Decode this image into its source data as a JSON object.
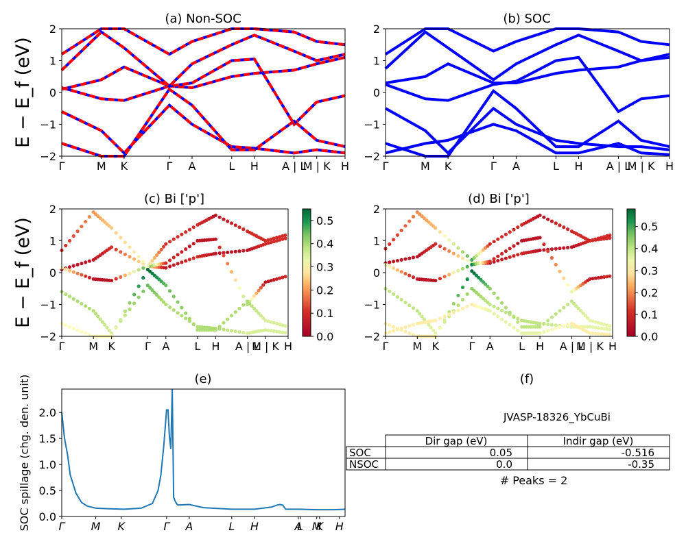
{
  "figure": {
    "band_kpoints": [
      "Γ",
      "M",
      "K",
      "Γ",
      "A",
      "L",
      "H",
      "A | L",
      "M | K",
      "H"
    ],
    "ylabel_band": "E − E_f (eV)",
    "colors": {
      "nonsoc_solid": "#0000ff",
      "nonsoc_dash": "#ff0000",
      "soc": "#0000ff",
      "spillage": "#1f77b4"
    }
  },
  "chart_data": [
    {
      "id": "a",
      "type": "line",
      "title": "(a) Non-SOC",
      "ylabel": "E − E_f (eV)",
      "ylim": [
        -2,
        2
      ],
      "yticks": [
        -2,
        -1,
        0,
        1,
        2
      ],
      "xticks": [
        "Γ",
        "M",
        "K",
        "Γ",
        "A",
        "L",
        "H",
        "A | L",
        "M | K",
        "H"
      ],
      "note": "Non-SOC bands, blue line overlaid with red dashes",
      "series_x": [
        0,
        0.14,
        0.22,
        0.38,
        0.46,
        0.6,
        0.68,
        0.82,
        0.9,
        1.0
      ],
      "series": [
        {
          "values": [
            0.1,
            0.4,
            0.8,
            0.2,
            0.15,
            0.5,
            0.6,
            0.7,
            0.9,
            1.1
          ]
        },
        {
          "values": [
            0.15,
            -0.2,
            -0.25,
            0.2,
            0.3,
            1.0,
            1.05,
            -1.0,
            -0.3,
            -0.1
          ]
        },
        {
          "values": [
            -0.6,
            -1.2,
            -1.9,
            -0.4,
            -1.0,
            -1.7,
            -1.75,
            -1.9,
            -1.8,
            -1.9
          ]
        },
        {
          "values": [
            -1.6,
            -2.0,
            -2.0,
            0.1,
            -0.4,
            -1.8,
            -1.8,
            -0.9,
            -1.5,
            -1.7
          ]
        },
        {
          "values": [
            0.7,
            1.9,
            1.4,
            0.2,
            0.9,
            1.5,
            1.8,
            1.3,
            1.0,
            1.2
          ]
        },
        {
          "values": [
            1.2,
            2.0,
            2.0,
            1.2,
            1.6,
            2.0,
            2.0,
            1.9,
            1.6,
            1.5
          ]
        }
      ]
    },
    {
      "id": "b",
      "type": "line",
      "title": "(b) SOC",
      "ylim": [
        -2,
        2
      ],
      "yticks": [
        -2,
        -1,
        0,
        1,
        2
      ],
      "xticks": [
        "Γ",
        "M",
        "K",
        "Γ",
        "A",
        "L",
        "H",
        "A | L",
        "M | K",
        "H"
      ],
      "series_x": [
        0,
        0.14,
        0.22,
        0.38,
        0.46,
        0.6,
        0.68,
        0.82,
        0.9,
        1.0
      ],
      "series": [
        {
          "values": [
            0.3,
            0.5,
            0.9,
            0.3,
            0.3,
            0.6,
            0.7,
            0.8,
            1.0,
            1.1
          ]
        },
        {
          "values": [
            0.25,
            -0.2,
            -0.25,
            0.25,
            0.35,
            1.0,
            1.1,
            -0.6,
            -0.2,
            -0.1
          ]
        },
        {
          "values": [
            -0.5,
            -1.2,
            -1.9,
            -0.5,
            -1.0,
            -1.5,
            -1.6,
            -1.7,
            -1.7,
            -1.8
          ]
        },
        {
          "values": [
            -1.6,
            -2.0,
            -2.0,
            0.05,
            -0.5,
            -1.7,
            -1.7,
            -0.9,
            -1.5,
            -1.7
          ]
        },
        {
          "values": [
            0.75,
            1.9,
            1.4,
            0.4,
            0.9,
            1.5,
            1.8,
            1.3,
            1.0,
            1.2
          ]
        },
        {
          "values": [
            1.2,
            2.0,
            2.0,
            1.3,
            1.6,
            2.0,
            2.0,
            1.9,
            1.6,
            1.5
          ]
        },
        {
          "values": [
            -1.9,
            -1.6,
            -1.5,
            -1.0,
            -1.2,
            -1.9,
            -1.9,
            -1.6,
            -1.9,
            -1.95
          ]
        }
      ]
    },
    {
      "id": "c",
      "type": "scatter",
      "title": "(c)  Bi ['p']",
      "ylabel": "E − E_f (eV)",
      "ylim": [
        -2,
        2
      ],
      "yticks": [
        -2,
        -1,
        0,
        1,
        2
      ],
      "xticks": [
        "Γ",
        "M",
        "K",
        "Γ",
        "A",
        "L",
        "H",
        "A | L",
        "M | K",
        "H"
      ],
      "colorbar": {
        "min": 0.0,
        "max": 0.55,
        "ticks": [
          "0.0",
          "0.1",
          "0.2",
          "0.3",
          "0.4",
          "0.5"
        ]
      },
      "series_x": [
        0,
        0.14,
        0.22,
        0.38,
        0.46,
        0.6,
        0.68,
        0.82,
        0.9,
        1.0
      ],
      "series": [
        {
          "values": [
            0.1,
            0.4,
            0.8,
            0.2,
            0.15,
            0.5,
            0.6,
            0.7,
            0.9,
            1.1
          ],
          "weight": [
            0.05,
            0.05,
            0.1,
            0.3,
            0.05,
            0.1,
            0.05,
            0.05,
            0.1,
            0.1
          ]
        },
        {
          "values": [
            0.15,
            -0.2,
            -0.25,
            0.2,
            0.3,
            1.0,
            1.05,
            -1.0,
            -0.3,
            -0.1
          ],
          "weight": [
            0.3,
            0.05,
            0.05,
            0.5,
            0.1,
            0.05,
            0.05,
            0.4,
            0.05,
            0.1
          ]
        },
        {
          "values": [
            -0.6,
            -1.2,
            -1.9,
            -0.4,
            -1.0,
            -1.7,
            -1.75,
            -1.9,
            -1.8,
            -1.9
          ],
          "weight": [
            0.4,
            0.4,
            0.35,
            0.45,
            0.4,
            0.4,
            0.4,
            0.35,
            0.35,
            0.35
          ]
        },
        {
          "values": [
            -1.6,
            -2.0,
            -2.0,
            0.1,
            -0.4,
            -1.8,
            -1.8,
            -0.9,
            -1.5,
            -1.7
          ],
          "weight": [
            0.3,
            0.3,
            0.3,
            0.55,
            0.45,
            0.4,
            0.4,
            0.4,
            0.35,
            0.35
          ]
        },
        {
          "values": [
            0.7,
            1.9,
            1.4,
            0.2,
            0.9,
            1.5,
            1.8,
            1.3,
            1.0,
            1.2
          ],
          "weight": [
            0.1,
            0.2,
            0.25,
            0.3,
            0.1,
            0.1,
            0.05,
            0.1,
            0.1,
            0.1
          ]
        }
      ]
    },
    {
      "id": "d",
      "type": "scatter",
      "title": "(d) Bi ['p']",
      "ylim": [
        -2,
        2
      ],
      "yticks": [
        -2,
        -1,
        0,
        1,
        2
      ],
      "xticks": [
        "Γ",
        "M",
        "K",
        "Γ",
        "A",
        "L",
        "H",
        "A | L",
        "M | K",
        "H"
      ],
      "colorbar": {
        "min": 0.0,
        "max": 0.58,
        "ticks": [
          "0.0",
          "0.1",
          "0.2",
          "0.3",
          "0.4",
          "0.5"
        ]
      },
      "series_x": [
        0,
        0.14,
        0.22,
        0.38,
        0.46,
        0.6,
        0.68,
        0.82,
        0.9,
        1.0
      ],
      "series": [
        {
          "values": [
            0.3,
            0.5,
            0.9,
            0.3,
            0.3,
            0.6,
            0.7,
            0.8,
            1.0,
            1.1
          ],
          "weight": [
            0.05,
            0.05,
            0.1,
            0.35,
            0.05,
            0.1,
            0.05,
            0.05,
            0.1,
            0.1
          ]
        },
        {
          "values": [
            0.25,
            -0.2,
            -0.25,
            0.25,
            0.35,
            1.0,
            1.1,
            -0.6,
            -0.2,
            -0.1
          ],
          "weight": [
            0.35,
            0.05,
            0.05,
            0.55,
            0.1,
            0.05,
            0.05,
            0.35,
            0.05,
            0.1
          ]
        },
        {
          "values": [
            -0.5,
            -1.2,
            -1.9,
            -0.5,
            -1.0,
            -1.5,
            -1.6,
            -1.7,
            -1.7,
            -1.8
          ],
          "weight": [
            0.4,
            0.4,
            0.35,
            0.45,
            0.4,
            0.4,
            0.4,
            0.35,
            0.35,
            0.35
          ]
        },
        {
          "values": [
            -1.6,
            -2.0,
            -2.0,
            0.05,
            -0.5,
            -1.7,
            -1.7,
            -0.9,
            -1.5,
            -1.7
          ],
          "weight": [
            0.3,
            0.3,
            0.3,
            0.58,
            0.45,
            0.4,
            0.4,
            0.4,
            0.35,
            0.35
          ]
        },
        {
          "values": [
            0.75,
            1.9,
            1.4,
            0.4,
            0.9,
            1.5,
            1.8,
            1.3,
            1.0,
            1.2
          ],
          "weight": [
            0.1,
            0.2,
            0.25,
            0.5,
            0.1,
            0.1,
            0.05,
            0.1,
            0.1,
            0.1
          ]
        },
        {
          "values": [
            -1.9,
            -1.6,
            -1.5,
            -1.0,
            -1.2,
            -1.9,
            -1.9,
            -1.6,
            -1.9,
            -1.95
          ],
          "weight": [
            0.3,
            0.3,
            0.3,
            0.3,
            0.35,
            0.35,
            0.35,
            0.3,
            0.3,
            0.3
          ]
        }
      ]
    },
    {
      "id": "e",
      "type": "line",
      "title": "(e)",
      "ylabel": "SOC spillage (chg. den. unit)",
      "ylim": [
        0,
        2.45
      ],
      "yticks": [
        0.0,
        0.5,
        1.0,
        1.5,
        2.0
      ],
      "xticks": [
        "Γ",
        "M",
        "K",
        "Γ",
        "A",
        "L",
        "H",
        "A",
        "L",
        "M",
        "K",
        "H"
      ],
      "x": [
        0,
        0.01,
        0.02,
        0.03,
        0.05,
        0.07,
        0.09,
        0.12,
        0.16,
        0.22,
        0.28,
        0.32,
        0.34,
        0.35,
        0.36,
        0.37,
        0.375,
        0.38,
        0.385,
        0.39,
        0.395,
        0.4,
        0.405,
        0.41,
        0.45,
        0.5,
        0.6,
        0.68,
        0.74,
        0.76,
        0.77,
        0.78,
        0.79,
        0.84,
        0.9,
        0.96,
        1.0
      ],
      "values": [
        2.0,
        1.5,
        1.2,
        0.8,
        0.45,
        0.27,
        0.2,
        0.16,
        0.15,
        0.14,
        0.16,
        0.25,
        0.5,
        0.8,
        1.35,
        2.05,
        2.05,
        1.55,
        1.3,
        2.45,
        0.37,
        0.3,
        0.25,
        0.22,
        0.23,
        0.17,
        0.14,
        0.14,
        0.18,
        0.22,
        0.23,
        0.22,
        0.14,
        0.14,
        0.13,
        0.13,
        0.14
      ]
    }
  ],
  "table_panel": {
    "title": "(f)",
    "subtitle": "JVASP-18326_YbCuBi",
    "col_headers": [
      "Dir gap (eV)",
      "Indir gap (eV)"
    ],
    "rows": [
      {
        "label": "SOC",
        "dir": "0.05",
        "indir": "-0.516"
      },
      {
        "label": "NSOC",
        "dir": "0.0",
        "indir": "-0.35"
      }
    ],
    "peaks": "# Peaks = 2"
  }
}
